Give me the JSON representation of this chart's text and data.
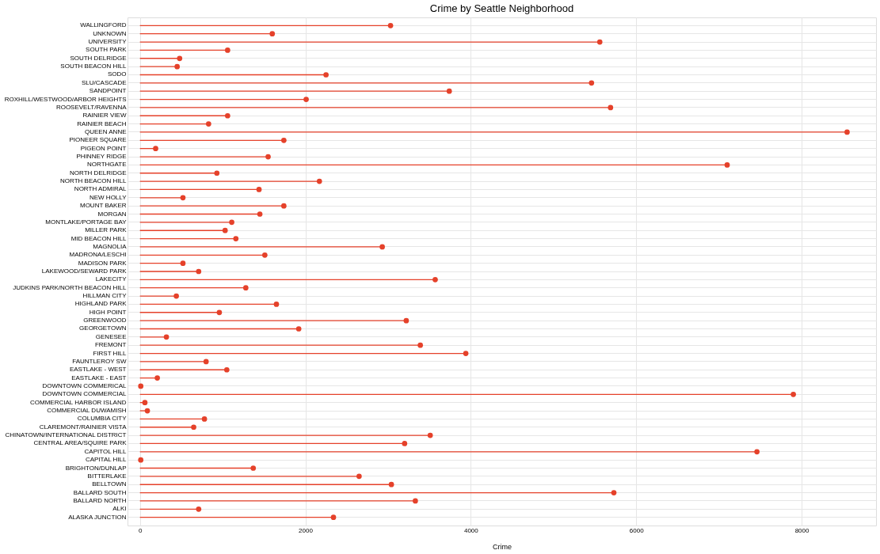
{
  "chart_data": {
    "type": "lollipop",
    "orientation": "horizontal",
    "title": "Crime by Seattle Neighborhood",
    "xlabel": "Crime",
    "categories": [
      "WALLINGFORD",
      "UNKNOWN",
      "UNIVERSITY",
      "SOUTH PARK",
      "SOUTH DELRIDGE",
      "SOUTH BEACON HILL",
      "SODO",
      "SLU/CASCADE",
      "SANDPOINT",
      "ROXHILL/WESTWOOD/ARBOR HEIGHTS",
      "ROOSEVELT/RAVENNA",
      "RAINIER VIEW",
      "RAINIER BEACH",
      "QUEEN ANNE",
      "PIONEER SQUARE",
      "PIGEON POINT",
      "PHINNEY RIDGE",
      "NORTHGATE",
      "NORTH DELRIDGE",
      "NORTH BEACON HILL",
      "NORTH ADMIRAL",
      "NEW HOLLY",
      "MOUNT BAKER",
      "MORGAN",
      "MONTLAKE/PORTAGE BAY",
      "MILLER PARK",
      "MID BEACON HILL",
      "MAGNOLIA",
      "MADRONA/LESCHI",
      "MADISON PARK",
      "LAKEWOOD/SEWARD PARK",
      "LAKECITY",
      "JUDKINS PARK/NORTH BEACON HILL",
      "HILLMAN CITY",
      "HIGHLAND PARK",
      "HIGH POINT",
      "GREENWOOD",
      "GEORGETOWN",
      "GENESEE",
      "FREMONT",
      "FIRST HILL",
      "FAUNTLEROY SW",
      "EASTLAKE - WEST",
      "EASTLAKE - EAST",
      "DOWNTOWN COMMERICAL",
      "DOWNTOWN COMMERCIAL",
      "COMMERCIAL HARBOR ISLAND",
      "COMMERCIAL DUWAMISH",
      "COLUMBIA CITY",
      "CLAREMONT/RAINIER VISTA",
      "CHINATOWN/INTERNATIONAL DISTRICT",
      "CENTRAL AREA/SQUIRE PARK",
      "CAPITOL HILL",
      "CAPITAL HILL",
      "BRIGHTON/DUNLAP",
      "BITTERLAKE",
      "BELLTOWN",
      "BALLARD SOUTH",
      "BALLARD NORTH",
      "ALKI",
      "ALASKA JUNCTION"
    ],
    "values": [
      3030,
      1600,
      5560,
      1060,
      480,
      450,
      2250,
      5460,
      3740,
      2010,
      5690,
      1060,
      830,
      8550,
      1740,
      190,
      1550,
      7100,
      930,
      2170,
      1440,
      520,
      1740,
      1450,
      1110,
      1030,
      1160,
      2930,
      1510,
      520,
      710,
      3570,
      1280,
      440,
      1650,
      960,
      3220,
      1920,
      320,
      3390,
      3940,
      800,
      1050,
      210,
      10,
      7900,
      60,
      90,
      780,
      650,
      3510,
      3200,
      7460,
      10,
      1370,
      2650,
      3040,
      5730,
      3330,
      710,
      2340
    ],
    "color": "#e5412a",
    "marker": "circle",
    "grid": true,
    "xlim": [
      -150,
      8900
    ],
    "xticks": [
      0,
      2000,
      4000,
      6000,
      8000
    ]
  }
}
